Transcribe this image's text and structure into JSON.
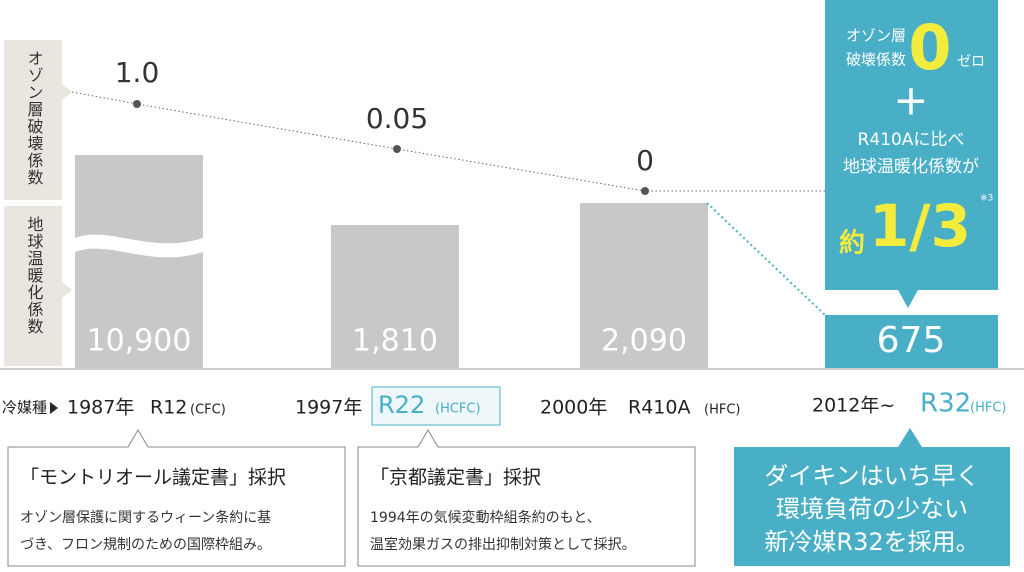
{
  "axis_labels": {
    "odp": "オゾン層破壊係数",
    "gwp": "地球温暖化係数"
  },
  "refrigerant_label": "冷媒種",
  "columns": [
    {
      "year": "1987年",
      "refrigerant": "R12",
      "kind": "(CFC)",
      "odp": "1.0",
      "gwp": "10,900"
    },
    {
      "year": "1997年",
      "refrigerant": "R22",
      "kind": "(HCFC)",
      "odp": "0.05",
      "gwp": "1,810"
    },
    {
      "year": "2000年",
      "refrigerant": "R410A",
      "kind": "(HFC)",
      "odp": "0",
      "gwp": "2,090"
    },
    {
      "year": "2012年~",
      "refrigerant": "R32",
      "kind": "(HFC)",
      "gwp": "675"
    }
  ],
  "highlight": {
    "odp_label_1": "オゾン層",
    "odp_label_2": "破壊係数",
    "odp_value": "0",
    "odp_reading": "ゼロ",
    "plus": "+",
    "line_1": "R410Aに比べ",
    "line_2": "地球温暖化係数が",
    "approx": "約",
    "ratio": "1/3",
    "note": "※3"
  },
  "callouts": [
    {
      "title": "「モントリオール議定書」採択",
      "lines": [
        "オゾン層保護に関するウィーン条約に基",
        "づき、フロン規制のための国際枠組み。"
      ]
    },
    {
      "title": "「京都議定書」採択",
      "lines": [
        "1994年の気候変動枠組条約のもと、",
        "温室効果ガスの排出抑制対策として採択。"
      ]
    },
    {
      "lines": [
        "ダイキンはいち早く",
        "環境負荷の少ない",
        "新冷媒R32を採用。"
      ]
    }
  ]
}
